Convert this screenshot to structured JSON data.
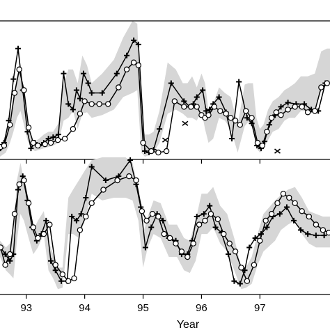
{
  "chart_data": {
    "type": "line",
    "xlabel": "Year",
    "xlim": [
      92.55,
      98.2
    ],
    "x_ticks": [
      93,
      94,
      95,
      96,
      97
    ],
    "x_tick_labels": [
      "93",
      "94",
      "95",
      "96",
      "97"
    ],
    "colors": {
      "band": "#d6d6d6",
      "line": "#000000",
      "marker_fill": "#ffffff"
    },
    "panels": [
      {
        "name": "top",
        "ylim": [
          0,
          1
        ],
        "band": {
          "x": [
            92.55,
            92.65,
            92.72,
            92.78,
            92.84,
            92.9,
            92.96,
            93.02,
            93.08,
            93.15,
            93.22,
            93.3,
            93.38,
            93.46,
            93.55,
            93.64,
            93.72,
            93.8,
            93.88,
            93.96,
            94.04,
            94.12,
            94.3,
            94.5,
            94.66,
            94.82,
            94.9,
            94.97,
            95.03,
            95.1,
            95.18,
            95.28,
            95.42,
            95.56,
            95.68,
            95.76,
            95.84,
            95.92,
            96.0,
            96.06,
            96.12,
            96.2,
            96.3,
            96.4,
            96.5,
            96.62,
            96.74,
            96.8,
            96.88,
            96.94,
            97.0,
            97.06,
            97.14,
            97.22,
            97.32,
            97.42,
            97.5,
            97.6,
            97.7,
            97.82,
            97.94,
            98.05,
            98.15,
            98.2
          ],
          "lower": [
            0.02,
            0.05,
            0.12,
            0.2,
            0.3,
            0.35,
            0.25,
            0.14,
            0.08,
            0.06,
            0.07,
            0.08,
            0.09,
            0.1,
            0.12,
            0.28,
            0.3,
            0.35,
            0.22,
            0.33,
            0.34,
            0.3,
            0.32,
            0.36,
            0.45,
            0.48,
            0.5,
            0.05,
            0.02,
            0.03,
            0.05,
            0.12,
            0.33,
            0.36,
            0.33,
            0.3,
            0.3,
            0.28,
            0.35,
            0.22,
            0.12,
            0.15,
            0.3,
            0.28,
            0.22,
            0.05,
            0.24,
            0.27,
            0.27,
            0.08,
            0.05,
            0.08,
            0.14,
            0.2,
            0.22,
            0.28,
            0.3,
            0.3,
            0.35,
            0.35,
            0.36,
            0.52,
            0.55,
            0.55
          ],
          "upper": [
            0.1,
            0.18,
            0.3,
            0.45,
            0.6,
            0.68,
            0.48,
            0.28,
            0.15,
            0.13,
            0.15,
            0.18,
            0.2,
            0.2,
            0.26,
            0.55,
            0.65,
            0.65,
            0.55,
            0.75,
            0.68,
            0.55,
            0.62,
            0.72,
            0.88,
            1.0,
            0.98,
            0.25,
            0.18,
            0.18,
            0.2,
            0.35,
            0.7,
            0.65,
            0.55,
            0.55,
            0.6,
            0.52,
            0.62,
            0.55,
            0.35,
            0.4,
            0.52,
            0.48,
            0.45,
            0.25,
            0.54,
            0.55,
            0.55,
            0.3,
            0.22,
            0.25,
            0.36,
            0.42,
            0.45,
            0.5,
            0.52,
            0.55,
            0.6,
            0.6,
            0.62,
            0.78,
            0.8,
            0.8
          ]
        },
        "series": [
          {
            "marker": "plus",
            "x": [
              92.56,
              92.62,
              92.7,
              92.78,
              92.86,
              92.94,
              93.02,
              93.08,
              93.15,
              93.22,
              93.3,
              93.38,
              93.46,
              93.55,
              93.64,
              93.72,
              93.8,
              93.86,
              93.92,
              93.98,
              94.06,
              94.12,
              94.3,
              94.55,
              94.72,
              94.84,
              94.92,
              95.03,
              95.1,
              95.18,
              95.28,
              95.48,
              95.7,
              95.8,
              95.86,
              95.92,
              96.02,
              96.08,
              96.14,
              96.2,
              96.3,
              96.42,
              96.52,
              96.64,
              96.78,
              96.86,
              96.95,
              97.02,
              97.08,
              97.16,
              97.26,
              97.36,
              97.48,
              97.62,
              97.76,
              97.88,
              98.0,
              98.12
            ],
            "y": [
              0.08,
              0.12,
              0.28,
              0.58,
              0.8,
              0.5,
              0.2,
              0.08,
              0.12,
              0.1,
              0.12,
              0.15,
              0.16,
              0.18,
              0.62,
              0.4,
              0.36,
              0.5,
              0.44,
              0.62,
              0.55,
              0.48,
              0.48,
              0.62,
              0.75,
              0.86,
              0.83,
              0.06,
              0.05,
              0.07,
              0.22,
              0.55,
              0.42,
              0.38,
              0.4,
              0.45,
              0.5,
              0.35,
              0.36,
              0.4,
              0.45,
              0.34,
              0.15,
              0.56,
              0.3,
              0.26,
              0.1,
              0.08,
              0.13,
              0.25,
              0.32,
              0.38,
              0.41,
              0.4,
              0.4,
              0.36,
              0.35,
              0.55
            ]
          },
          {
            "marker": "circle",
            "x": [
              92.56,
              92.62,
              92.72,
              92.8,
              92.88,
              92.96,
              93.04,
              93.12,
              93.2,
              93.32,
              93.42,
              93.54,
              93.66,
              93.8,
              93.92,
              94.0,
              94.12,
              94.25,
              94.4,
              94.58,
              94.72,
              94.84,
              94.92,
              95.0,
              95.14,
              95.26,
              95.4,
              95.54,
              95.7,
              95.82,
              95.92,
              96.0,
              96.06,
              96.12,
              96.22,
              96.32,
              96.42,
              96.5,
              96.58,
              96.66,
              96.76,
              96.86,
              96.96,
              97.04,
              97.12,
              97.2,
              97.28,
              97.36,
              97.48,
              97.6,
              97.72,
              97.82,
              97.94,
              98.05,
              98.15
            ],
            "y": [
              0.09,
              0.1,
              0.25,
              0.48,
              0.65,
              0.5,
              0.23,
              0.12,
              0.1,
              0.11,
              0.12,
              0.14,
              0.15,
              0.22,
              0.33,
              0.42,
              0.4,
              0.4,
              0.4,
              0.52,
              0.65,
              0.7,
              0.68,
              0.12,
              0.06,
              0.05,
              0.06,
              0.42,
              0.38,
              0.38,
              0.38,
              0.32,
              0.3,
              0.32,
              0.38,
              0.35,
              0.33,
              0.3,
              0.28,
              0.25,
              0.35,
              0.3,
              0.12,
              0.1,
              0.2,
              0.3,
              0.34,
              0.32,
              0.36,
              0.38,
              0.38,
              0.34,
              0.35,
              0.52,
              0.55
            ]
          },
          {
            "marker": "cross",
            "x": [
              95.38,
              95.72,
              97.3
            ],
            "y": [
              0.14,
              0.26,
              0.06
            ]
          }
        ]
      },
      {
        "name": "bottom",
        "ylim": [
          0,
          1
        ],
        "band": {
          "x": [
            92.55,
            92.65,
            92.72,
            92.78,
            92.84,
            92.9,
            92.96,
            93.04,
            93.12,
            93.2,
            93.3,
            93.38,
            93.46,
            93.54,
            93.62,
            93.72,
            93.8,
            93.9,
            94.0,
            94.12,
            94.3,
            94.5,
            94.7,
            94.82,
            94.92,
            95.0,
            95.08,
            95.18,
            95.3,
            95.44,
            95.58,
            95.7,
            95.8,
            95.9,
            96.0,
            96.1,
            96.2,
            96.32,
            96.44,
            96.56,
            96.68,
            96.76,
            96.86,
            96.96,
            97.06,
            97.16,
            97.26,
            97.36,
            97.48,
            97.6,
            97.72,
            97.84,
            97.96,
            98.08,
            98.2
          ],
          "lower": [
            0.28,
            0.18,
            0.15,
            0.12,
            0.4,
            0.6,
            0.55,
            0.42,
            0.3,
            0.35,
            0.45,
            0.18,
            0.12,
            0.04,
            0.05,
            0.45,
            0.45,
            0.42,
            0.55,
            0.75,
            0.7,
            0.72,
            0.72,
            0.7,
            0.55,
            0.2,
            0.35,
            0.45,
            0.42,
            0.28,
            0.28,
            0.18,
            0.16,
            0.25,
            0.45,
            0.45,
            0.5,
            0.38,
            0.32,
            0.18,
            0.04,
            0.05,
            0.08,
            0.22,
            0.32,
            0.36,
            0.4,
            0.48,
            0.52,
            0.55,
            0.45,
            0.38,
            0.35,
            0.35,
            0.35
          ],
          "upper": [
            0.4,
            0.35,
            0.38,
            0.45,
            0.85,
            0.98,
            0.85,
            0.62,
            0.48,
            0.55,
            0.62,
            0.4,
            0.3,
            0.2,
            0.2,
            0.72,
            0.78,
            0.85,
            0.92,
            1.0,
            1.05,
            1.1,
            1.18,
            0.98,
            0.78,
            0.45,
            0.58,
            0.7,
            0.68,
            0.52,
            0.52,
            0.42,
            0.4,
            0.55,
            0.75,
            0.75,
            0.8,
            0.66,
            0.6,
            0.42,
            0.2,
            0.2,
            0.28,
            0.45,
            0.6,
            0.65,
            0.7,
            0.74,
            0.78,
            0.8,
            0.72,
            0.62,
            0.6,
            0.58,
            0.58
          ]
        },
        "series": [
          {
            "marker": "plus",
            "x": [
              92.56,
              92.64,
              92.72,
              92.78,
              92.86,
              92.94,
              93.02,
              93.1,
              93.18,
              93.26,
              93.34,
              93.42,
              93.5,
              93.6,
              93.7,
              93.78,
              93.86,
              93.94,
              94.02,
              94.12,
              94.36,
              94.58,
              94.78,
              94.88,
              94.96,
              95.04,
              95.14,
              95.24,
              95.34,
              95.44,
              95.56,
              95.66,
              95.76,
              95.84,
              95.92,
              96.04,
              96.14,
              96.24,
              96.34,
              96.46,
              96.56,
              96.66,
              96.74,
              96.82,
              96.92,
              97.02,
              97.12,
              97.22,
              97.34,
              97.46,
              97.58,
              97.7,
              97.82,
              97.96,
              98.1
            ],
            "y": [
              0.35,
              0.3,
              0.25,
              0.3,
              0.78,
              0.88,
              0.7,
              0.5,
              0.4,
              0.45,
              0.55,
              0.25,
              0.18,
              0.1,
              0.1,
              0.58,
              0.55,
              0.6,
              0.72,
              0.95,
              0.85,
              0.88,
              1.0,
              0.82,
              0.65,
              0.35,
              0.5,
              0.6,
              0.55,
              0.42,
              0.4,
              0.3,
              0.3,
              0.4,
              0.58,
              0.6,
              0.66,
              0.5,
              0.46,
              0.3,
              0.1,
              0.08,
              0.18,
              0.35,
              0.42,
              0.45,
              0.5,
              0.58,
              0.6,
              0.65,
              0.55,
              0.48,
              0.45,
              0.44,
              0.44
            ]
          },
          {
            "marker": "circle",
            "x": [
              92.56,
              92.64,
              92.72,
              92.8,
              92.88,
              92.96,
              93.04,
              93.12,
              93.2,
              93.3,
              93.4,
              93.5,
              93.62,
              93.72,
              93.82,
              93.92,
              94.02,
              94.12,
              94.32,
              94.56,
              94.76,
              94.88,
              94.98,
              95.06,
              95.16,
              95.26,
              95.36,
              95.46,
              95.56,
              95.66,
              95.76,
              95.86,
              95.96,
              96.06,
              96.16,
              96.28,
              96.38,
              96.48,
              96.58,
              96.68,
              96.78,
              96.9,
              97.0,
              97.1,
              97.2,
              97.3,
              97.4,
              97.5,
              97.6,
              97.72,
              97.84,
              97.96,
              98.08,
              98.18
            ],
            "y": [
              0.35,
              0.22,
              0.3,
              0.6,
              0.82,
              0.85,
              0.68,
              0.5,
              0.42,
              0.45,
              0.52,
              0.22,
              0.15,
              0.1,
              0.12,
              0.48,
              0.58,
              0.68,
              0.78,
              0.85,
              0.88,
              0.85,
              0.62,
              0.55,
              0.6,
              0.58,
              0.45,
              0.42,
              0.38,
              0.32,
              0.28,
              0.38,
              0.52,
              0.55,
              0.6,
              0.56,
              0.45,
              0.38,
              0.32,
              0.2,
              0.1,
              0.22,
              0.4,
              0.55,
              0.6,
              0.68,
              0.75,
              0.72,
              0.68,
              0.62,
              0.58,
              0.52,
              0.48,
              0.46
            ]
          }
        ]
      }
    ]
  }
}
